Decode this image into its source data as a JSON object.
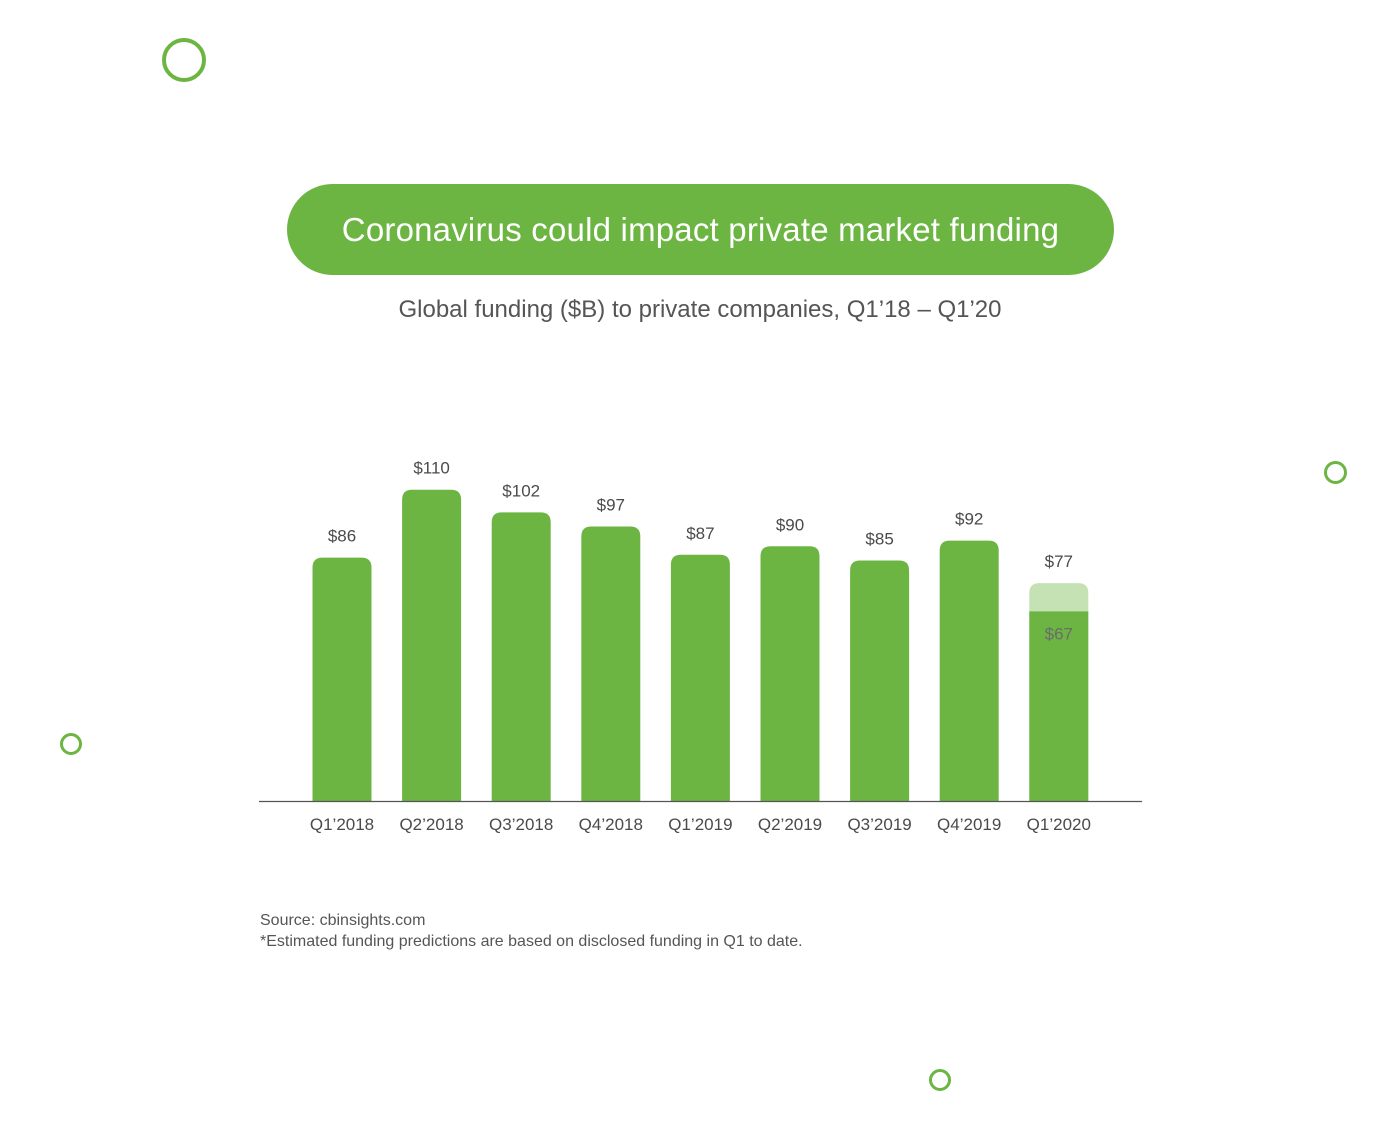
{
  "colors": {
    "accent": "#6db543",
    "estimate": "#c5e2b4",
    "axis": "#555555",
    "label": "#4a4a4a"
  },
  "header": {
    "title": "Coronavirus could impact private market funding",
    "subtitle": "Global funding ($B) to private companies, Q1’18 – Q1’20"
  },
  "chart_data": {
    "type": "bar",
    "title": "Coronavirus could impact private market funding",
    "subtitle": "Global funding ($B) to private companies, Q1’18 – Q1’20",
    "xlabel": "",
    "ylabel": "",
    "unit": "$B",
    "ylim": [
      0,
      110
    ],
    "grid": false,
    "legend": "none",
    "categories": [
      "Q1’2018",
      "Q2’2018",
      "Q3’2018",
      "Q4’2018",
      "Q1’2019",
      "Q2’2019",
      "Q3’2019",
      "Q4’2019",
      "Q1’2020"
    ],
    "values": [
      86,
      110,
      102,
      97,
      87,
      90,
      85,
      92,
      67
    ],
    "value_labels": [
      "$86",
      "$110",
      "$102",
      "$97",
      "$87",
      "$90",
      "$85",
      "$92",
      "$67"
    ],
    "estimated": {
      "category": "Q1’2020",
      "value": 77,
      "label": "$77"
    }
  },
  "footer": {
    "source": "Source: cbinsights.com",
    "note": "*Estimated funding predictions are based on disclosed funding in Q1 to date."
  }
}
